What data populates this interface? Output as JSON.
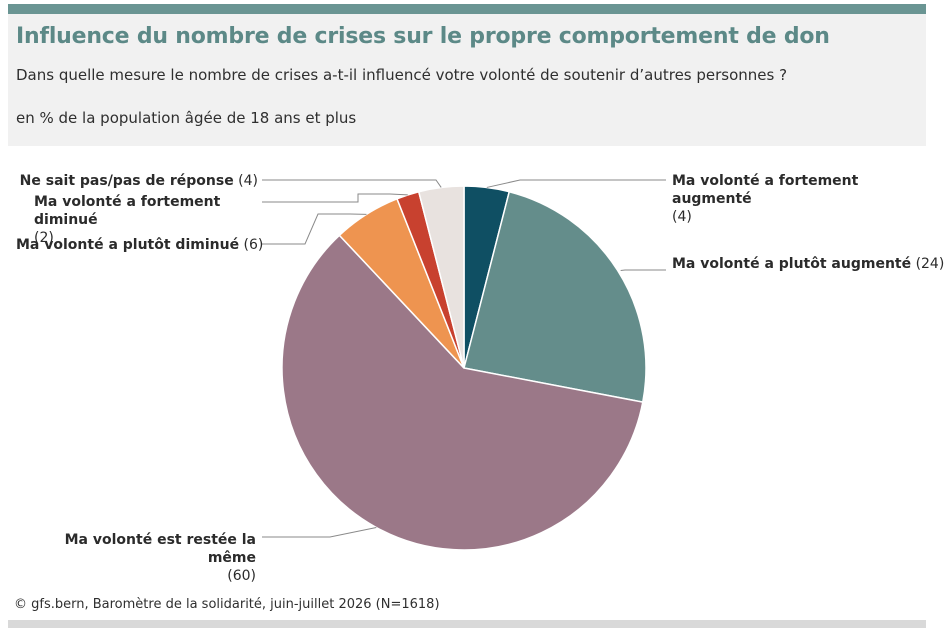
{
  "header": {
    "title": "Influence du nombre de crises sur le propre comportement de don",
    "subtitle": "Dans quelle mesure le nombre de crises a-t-il influencé votre volonté de soutenir d’autres personnes ?",
    "unit": "en % de la population âgée de 18 ans et plus"
  },
  "source": "© gfs.bern, Baromètre de la solidarité, juin-juillet 2026 (N=1618)",
  "chart_data": {
    "type": "pie",
    "slices": [
      {
        "label": "Ma volonté a fortement augmenté",
        "value": 4,
        "value_text": "(4)",
        "color": "#0f4f63"
      },
      {
        "label": "Ma volonté a plutôt augmenté",
        "value": 24,
        "value_text": "(24)",
        "color": "#648d8b"
      },
      {
        "label": "Ma volonté est restée la même",
        "value": 60,
        "value_text": "(60)",
        "color": "#9b7888"
      },
      {
        "label": "Ma volonté a plutôt diminué",
        "value": 6,
        "value_text": "(6)",
        "color": "#ee9450"
      },
      {
        "label": "Ma volonté a fortement diminué",
        "value": 2,
        "value_text": "(2)",
        "color": "#c8412f"
      },
      {
        "label": "Ne sait pas/pas de réponse",
        "value": 4,
        "value_text": "(4)",
        "color": "#e8e2df"
      }
    ]
  }
}
